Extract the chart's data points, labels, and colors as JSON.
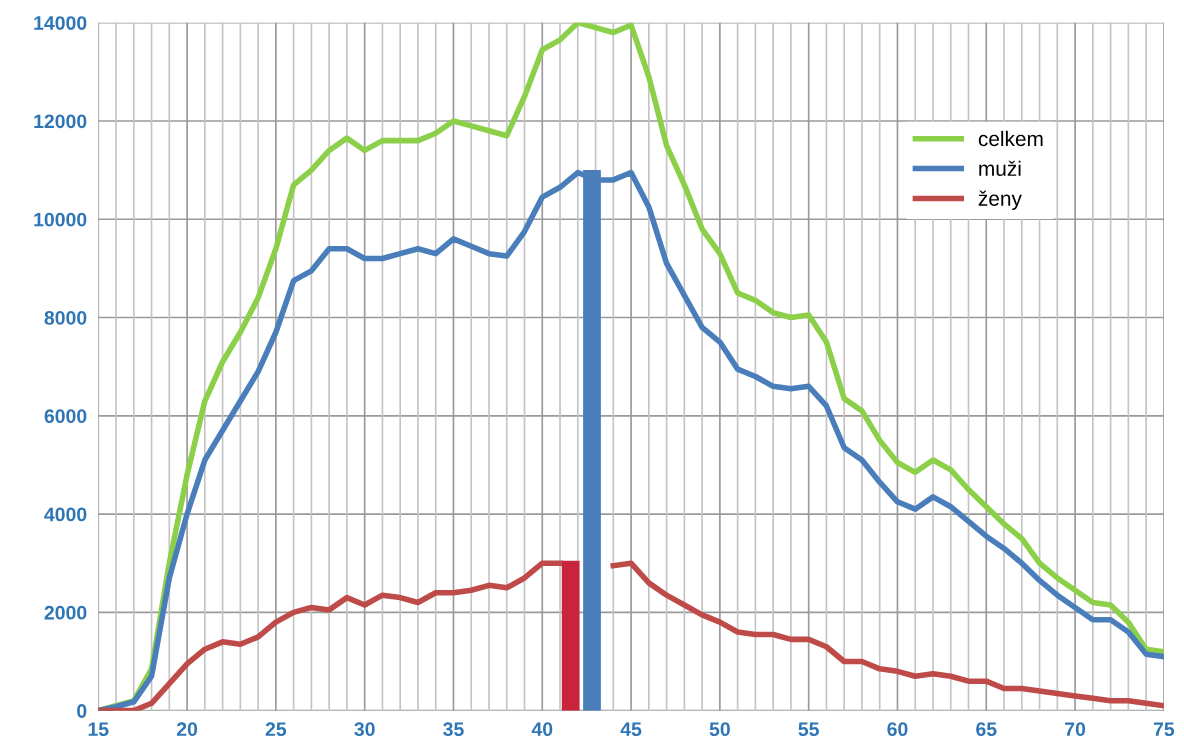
{
  "chart_data": {
    "type": "line",
    "x": [
      15,
      16,
      17,
      18,
      19,
      20,
      21,
      22,
      23,
      24,
      25,
      26,
      27,
      28,
      29,
      30,
      31,
      32,
      33,
      34,
      35,
      36,
      37,
      38,
      39,
      40,
      41,
      42,
      43,
      44,
      45,
      46,
      47,
      48,
      49,
      50,
      51,
      52,
      53,
      54,
      55,
      56,
      57,
      58,
      59,
      60,
      61,
      62,
      63,
      64,
      65,
      66,
      67,
      68,
      69,
      70,
      71,
      72,
      73,
      74,
      75
    ],
    "series": [
      {
        "name": "celkem",
        "color": "#8cd04a",
        "values": [
          0,
          100,
          200,
          850,
          3000,
          4800,
          6300,
          7100,
          7700,
          8400,
          9400,
          10700,
          11000,
          11400,
          11650,
          11400,
          11600,
          11600,
          11600,
          11750,
          12000,
          11900,
          11800,
          11700,
          12500,
          13450,
          13650,
          14000,
          13900,
          13800,
          13950,
          12900,
          11500,
          10700,
          9800,
          9300,
          8500,
          8350,
          8100,
          8000,
          8050,
          7500,
          6350,
          6100,
          5500,
          5050,
          4850,
          5100,
          4900,
          4500,
          4150,
          3800,
          3500,
          3000,
          2700,
          2450,
          2200,
          2150,
          1800,
          1250,
          1200
        ]
      },
      {
        "name": "muži",
        "color": "#4a7ebb",
        "values": [
          0,
          80,
          180,
          700,
          2700,
          4000,
          5100,
          5700,
          6300,
          6900,
          7700,
          8750,
          8950,
          9400,
          9400,
          9200,
          9200,
          9300,
          9400,
          9300,
          9600,
          9450,
          9300,
          9250,
          9750,
          10450,
          10650,
          10950,
          10800,
          10800,
          10950,
          10250,
          9100,
          8450,
          7800,
          7500,
          6950,
          6800,
          6600,
          6550,
          6600,
          6200,
          5350,
          5100,
          4650,
          4250,
          4100,
          4350,
          4150,
          3850,
          3550,
          3300,
          3000,
          2650,
          2350,
          2100,
          1850,
          1850,
          1600,
          1150,
          1100
        ]
      },
      {
        "name": "ženy",
        "color": "#be4b48",
        "values": [
          0,
          0,
          0,
          150,
          550,
          950,
          1250,
          1400,
          1350,
          1500,
          1800,
          2000,
          2100,
          2050,
          2300,
          2150,
          2350,
          2300,
          2200,
          2400,
          2400,
          2450,
          2550,
          2500,
          2700,
          3000,
          3000,
          null,
          null,
          2950,
          3000,
          2600,
          2350,
          2150,
          1950,
          1800,
          1600,
          1550,
          1550,
          1450,
          1450,
          1300,
          1000,
          1000,
          850,
          800,
          700,
          750,
          700,
          600,
          600,
          450,
          450,
          400,
          350,
          300,
          250,
          200,
          200,
          150,
          100
        ]
      },
      {
        "type": "bar",
        "x": [
          41.6,
          42.8
        ],
        "values": [
          3050,
          11000
        ],
        "colors": [
          "#c8243c",
          "#4a7ebb"
        ]
      }
    ],
    "xlim": [
      15,
      75
    ],
    "xticks": [
      15,
      20,
      25,
      30,
      35,
      40,
      45,
      50,
      55,
      60,
      65,
      70,
      75
    ],
    "ylim": [
      0,
      14000
    ],
    "yticks": [
      0,
      2000,
      4000,
      6000,
      8000,
      10000,
      12000,
      14000
    ],
    "grid": true,
    "legend": "top right"
  }
}
